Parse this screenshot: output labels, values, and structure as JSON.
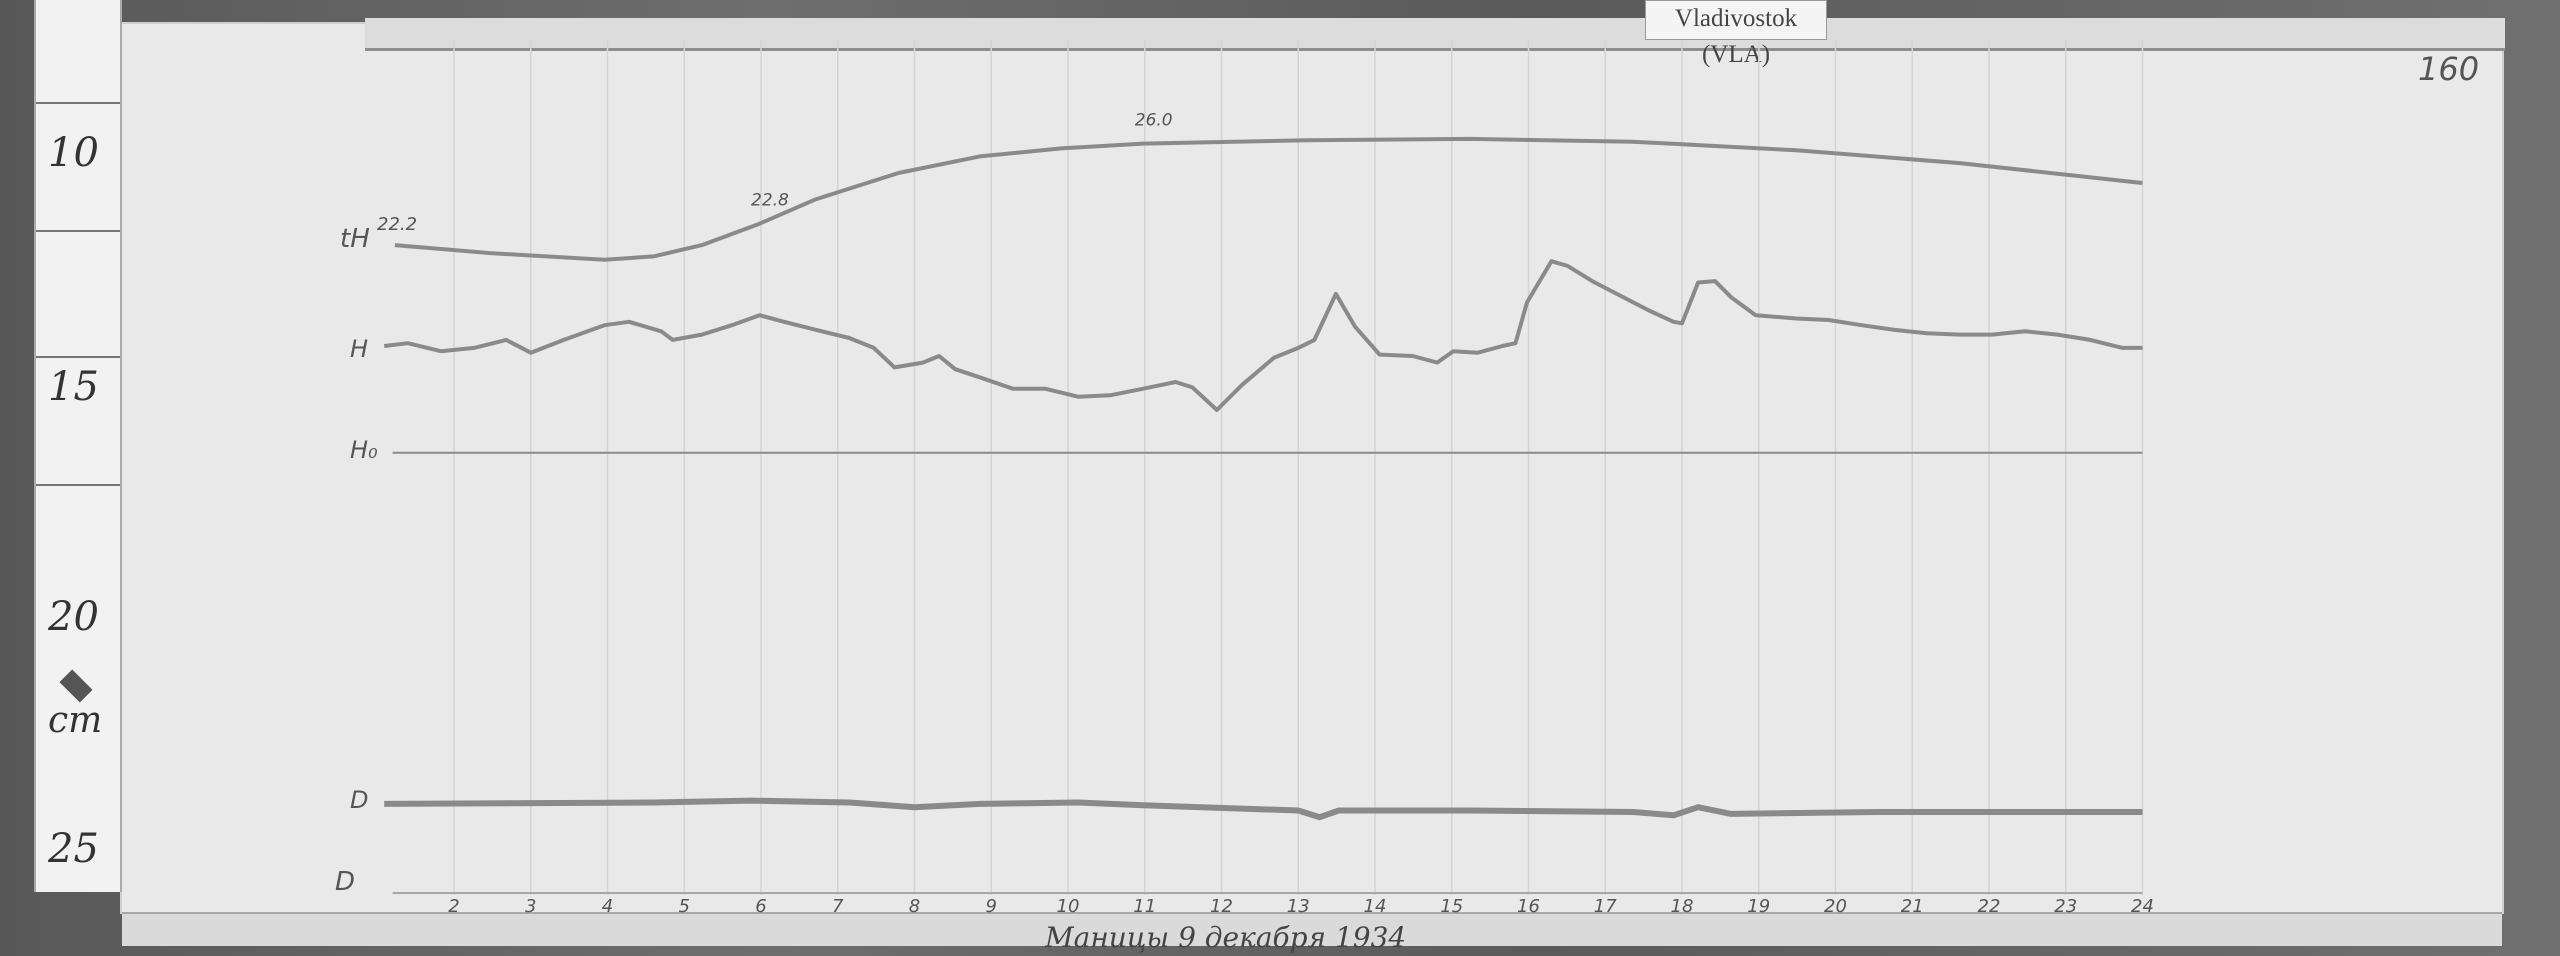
{
  "station_label": "Vladivostok (VLA)",
  "sheet_number": "160",
  "ruler": {
    "labels": [
      "10",
      "15",
      "20",
      "25"
    ],
    "unit": "cm"
  },
  "footer_handwriting": "Маницы 9 декабря 1934",
  "chart_data": {
    "type": "line",
    "xlabel": "",
    "ylabel": "",
    "x_unit": "hour",
    "y_unit": "cm (ruler)",
    "xlim": [
      1,
      24
    ],
    "x_ticks": [
      "2",
      "3",
      "4",
      "5",
      "6",
      "7",
      "8",
      "9",
      "10",
      "11",
      "12",
      "13",
      "14",
      "15",
      "16",
      "17",
      "18",
      "19",
      "20",
      "21",
      "22",
      "23",
      "24"
    ],
    "grid": "vertical hourly lines",
    "trace_labels": {
      "temperature": "tH",
      "H": "H",
      "H_baseline": "H₀",
      "D": "D",
      "D_baseline": "D"
    },
    "temperature_annotations": [
      {
        "x": 1.23,
        "text": "22.2"
      },
      {
        "x": 6.0,
        "text": "22.8"
      },
      {
        "x": 11.0,
        "text": "26.0"
      }
    ],
    "series": [
      {
        "name": "tH",
        "x": [
          1.23,
          2.47,
          3.96,
          4.6,
          5.23,
          5.98,
          6.72,
          7.79,
          8.85,
          9.91,
          10.98,
          13.11,
          15.23,
          17.36,
          19.49,
          21.62,
          24.0
        ],
        "y": [
          11.9,
          12.07,
          12.21,
          12.14,
          11.9,
          11.45,
          10.93,
          10.38,
          10.03,
          9.86,
          9.76,
          9.69,
          9.66,
          9.72,
          9.9,
          10.17,
          10.59
        ]
      },
      {
        "name": "H",
        "x": [
          1.09,
          1.4,
          1.83,
          2.26,
          2.68,
          3.0,
          3.43,
          3.96,
          4.28,
          4.7,
          4.85,
          5.23,
          5.62,
          5.98,
          6.3,
          6.72,
          7.15,
          7.47,
          7.74,
          8.11,
          8.32,
          8.53,
          8.85,
          9.28,
          9.7,
          10.13,
          10.55,
          10.98,
          11.4,
          11.62,
          11.94,
          12.26,
          12.68,
          13.0,
          13.21,
          13.49,
          13.74,
          14.06,
          14.49,
          14.81,
          15.02,
          15.34,
          15.66,
          15.83,
          15.98,
          16.3,
          16.51,
          16.83,
          17.15,
          17.57,
          17.89,
          18.0,
          18.21,
          18.43,
          18.64,
          18.96,
          19.49,
          19.91,
          20.34,
          20.77,
          21.19,
          21.62,
          22.04,
          22.47,
          22.89,
          23.32,
          23.74,
          24.0
        ],
        "y": [
          14.03,
          13.97,
          14.14,
          14.07,
          13.9,
          14.17,
          13.9,
          13.59,
          13.52,
          13.72,
          13.9,
          13.79,
          13.59,
          13.38,
          13.52,
          13.69,
          13.86,
          14.07,
          14.48,
          14.38,
          14.24,
          14.52,
          14.69,
          14.93,
          14.93,
          15.1,
          15.07,
          14.93,
          14.79,
          14.9,
          15.38,
          14.86,
          14.28,
          14.07,
          13.9,
          12.93,
          13.62,
          14.21,
          14.24,
          14.38,
          14.14,
          14.17,
          14.03,
          13.97,
          13.11,
          12.24,
          12.34,
          12.66,
          12.93,
          13.28,
          13.52,
          13.55,
          12.69,
          12.66,
          13.0,
          13.38,
          13.45,
          13.48,
          13.59,
          13.69,
          13.76,
          13.79,
          13.79,
          13.72,
          13.79,
          13.9,
          14.07,
          14.07
        ]
      },
      {
        "name": "H₀",
        "x": [
          1.2,
          24.0
        ],
        "y": [
          16.28,
          16.28
        ]
      },
      {
        "name": "D",
        "x": [
          1.09,
          4.6,
          5.87,
          7.15,
          8.0,
          8.85,
          10.13,
          10.98,
          12.26,
          13.0,
          13.28,
          13.53,
          15.23,
          17.36,
          17.89,
          18.21,
          18.64,
          20.55,
          24.0
        ],
        "y": [
          23.69,
          23.66,
          23.62,
          23.66,
          23.76,
          23.69,
          23.66,
          23.72,
          23.79,
          23.83,
          23.97,
          23.83,
          23.83,
          23.86,
          23.93,
          23.76,
          23.9,
          23.86,
          23.86
        ]
      }
    ],
    "colors": {
      "trace": "#8a8a8a",
      "grid": "#d4d4d4",
      "paper": "#e9e9e9"
    }
  }
}
